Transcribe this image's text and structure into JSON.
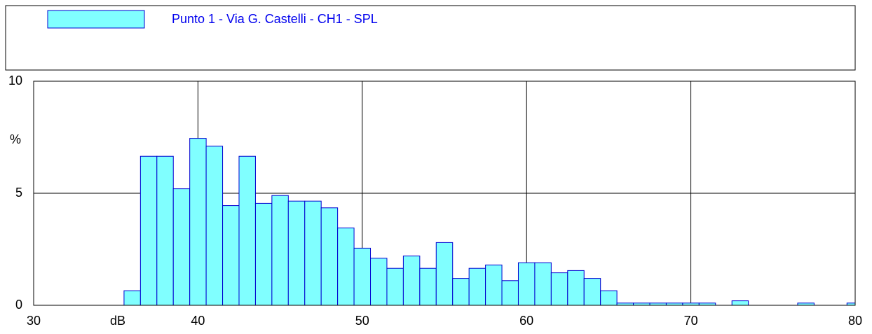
{
  "chart_data": {
    "type": "histogram",
    "legend": "Punto 1 - Via G. Castelli - CH1 - SPL",
    "x_label": "dB",
    "y_label": "%",
    "color": "#80ffff",
    "edge_color": "#0000d0",
    "bins": [
      35.5,
      36.5,
      37.5,
      38.5,
      39.5,
      40.5,
      41.5,
      42.5,
      43.5,
      44.5,
      45.5,
      46.5,
      47.5,
      48.5,
      49.5,
      50.5,
      51.5,
      52.5,
      53.5,
      54.5,
      55.5,
      56.5,
      57.5,
      58.5,
      59.5,
      60.5,
      61.5,
      62.5,
      63.5,
      64.5,
      65.5,
      66.5,
      67.5,
      68.5,
      69.5,
      70.5,
      71.5,
      72.5,
      73.5,
      74.5,
      75.5,
      76.5,
      77.5,
      78.5,
      79.5,
      80.5
    ],
    "values": [
      0.65,
      6.65,
      6.65,
      5.2,
      7.45,
      7.1,
      4.45,
      6.65,
      4.55,
      4.9,
      4.65,
      4.65,
      4.35,
      3.45,
      2.55,
      2.1,
      1.65,
      2.2,
      1.65,
      2.8,
      1.2,
      1.65,
      1.8,
      1.1,
      1.9,
      1.9,
      1.45,
      1.55,
      1.2,
      0.65,
      0.1,
      0.1,
      0.1,
      0.1,
      0.1,
      0.1,
      0,
      0.2,
      0,
      0,
      0,
      0.1,
      0,
      0,
      0.1
    ],
    "xlim": [
      30,
      80
    ],
    "xticks": [
      30,
      40,
      50,
      60,
      70,
      80
    ],
    "ylim": [
      0,
      10
    ],
    "yticks": [
      0,
      5,
      10
    ],
    "grid": true
  }
}
